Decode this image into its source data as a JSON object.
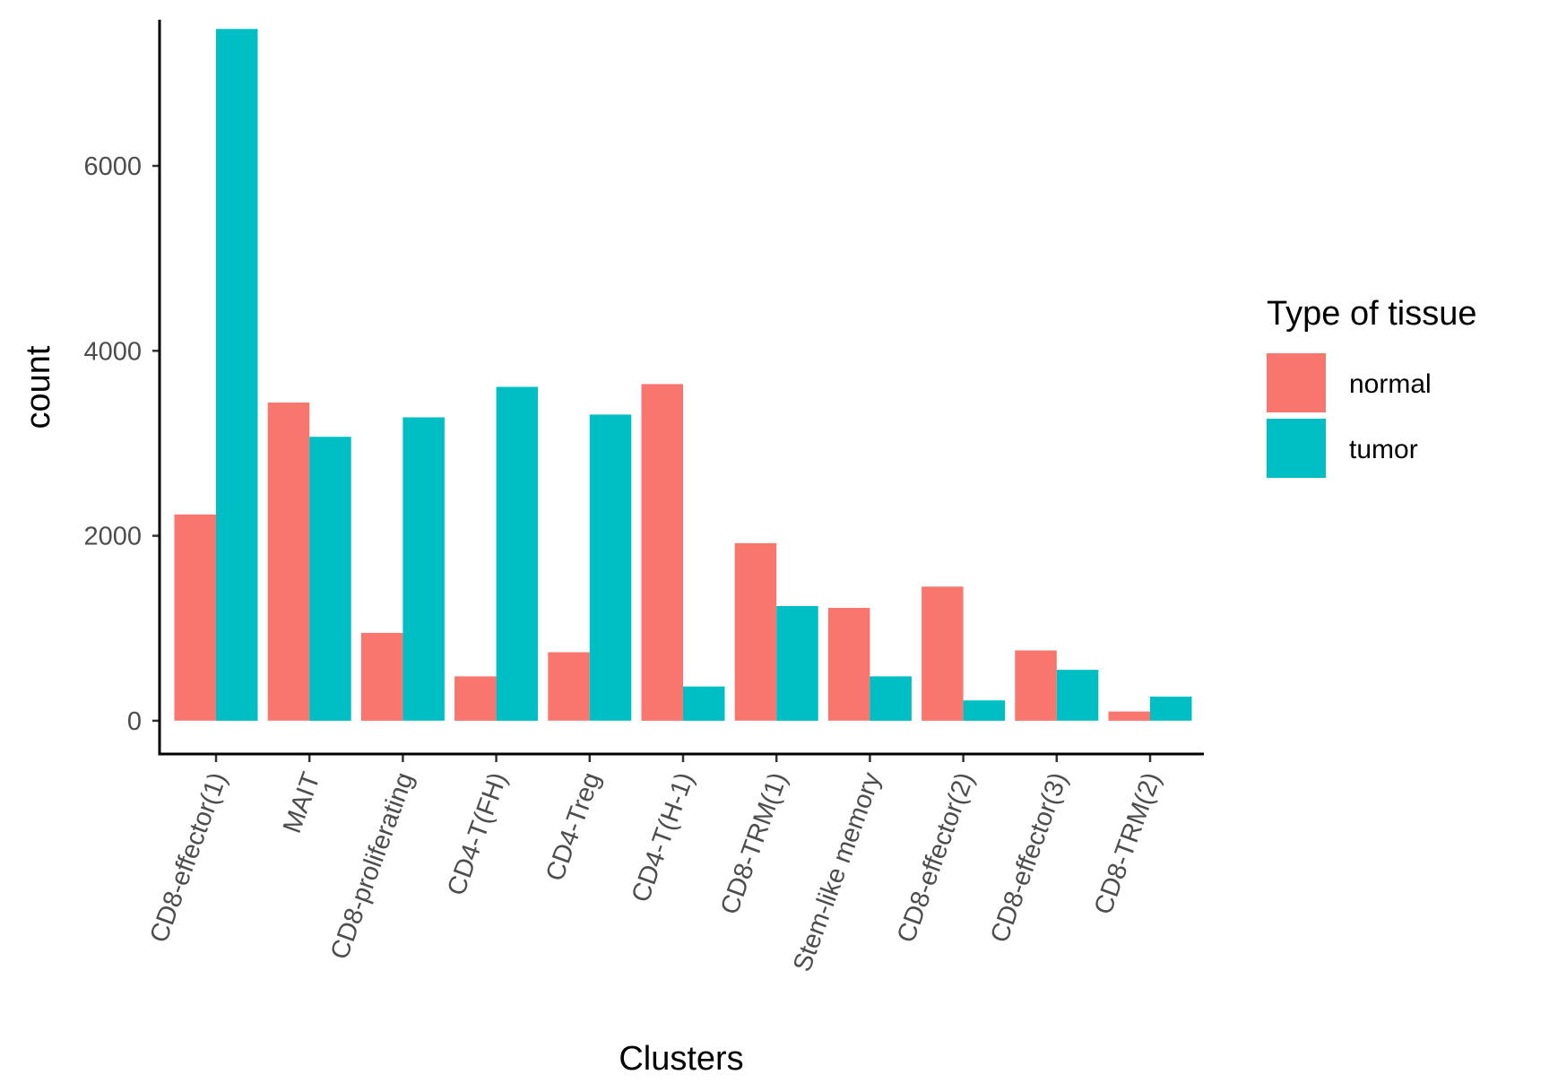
{
  "chart_data": {
    "type": "bar",
    "xlabel": "Clusters",
    "ylabel": "count",
    "ylim": [
      -360,
      7580
    ],
    "yticks": [
      0,
      2000,
      4000,
      6000
    ],
    "categories": [
      "CD8-effector(1)",
      "MAIT",
      "CD8-proliferating",
      "CD4-T(FH)",
      "CD4-Treg",
      "CD4-T(H-1)",
      "CD8-TRM(1)",
      "Stem-like memory",
      "CD8-effector(2)",
      "CD8-effector(3)",
      "CD8-TRM(2)"
    ],
    "series": [
      {
        "name": "normal",
        "color": "#F8766D",
        "values": [
          2230,
          3440,
          950,
          480,
          740,
          3640,
          1920,
          1220,
          1450,
          760,
          100
        ]
      },
      {
        "name": "tumor",
        "color": "#00BFC4",
        "values": [
          7480,
          3070,
          3280,
          3610,
          3310,
          370,
          1240,
          480,
          220,
          550,
          260
        ]
      }
    ],
    "legend": {
      "title": "Type of tissue",
      "position": "right"
    },
    "grid": false
  }
}
